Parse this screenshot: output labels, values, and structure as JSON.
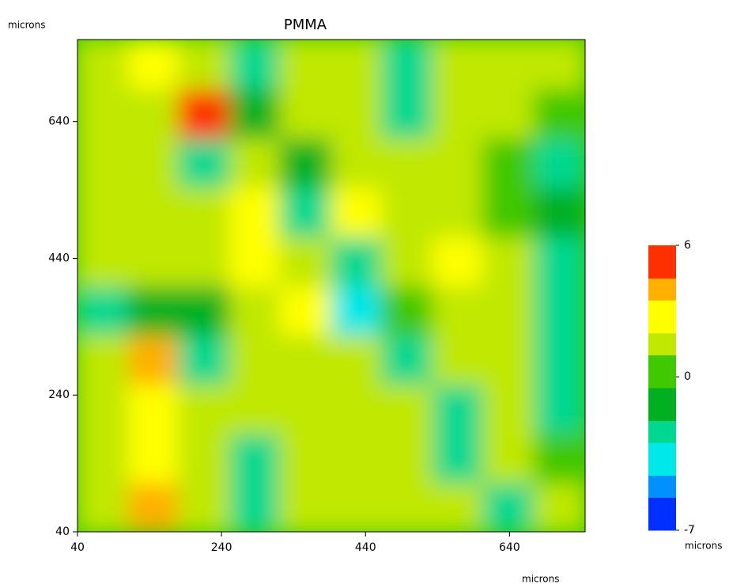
{
  "chart_data": {
    "type": "heatmap",
    "title": "PMMA",
    "xlabel": "microns",
    "ylabel": "microns",
    "colorbar_label": "microns",
    "x": [
      75,
      146,
      216,
      287,
      357,
      428,
      498,
      569,
      639,
      710
    ],
    "y": [
      76,
      148,
      220,
      292,
      364,
      436,
      508,
      580,
      652,
      724
    ],
    "z": [
      [
        1,
        4,
        2,
        -2,
        1,
        1,
        1,
        2,
        -3,
        1
      ],
      [
        2,
        3,
        1,
        -2,
        2,
        1,
        2,
        -3,
        2,
        0
      ],
      [
        1,
        3,
        1,
        2,
        1,
        1,
        1,
        -2,
        2,
        -3
      ],
      [
        1,
        4,
        -3,
        2,
        2,
        2,
        -2,
        2,
        1,
        -2
      ],
      [
        -2,
        -1,
        -1,
        1,
        3,
        -4,
        0,
        1,
        1,
        -3
      ],
      [
        1,
        2,
        1,
        3,
        2,
        -3,
        2,
        3,
        1,
        -3
      ],
      [
        2,
        1,
        1,
        3,
        -2,
        3,
        1,
        2,
        0,
        -1
      ],
      [
        1,
        2,
        -2,
        1,
        -1,
        2,
        1,
        2,
        0,
        -3
      ],
      [
        2,
        2,
        5,
        -1,
        1,
        2,
        -2,
        2,
        1,
        0
      ],
      [
        2,
        3,
        1,
        -2,
        1,
        2,
        -3,
        1,
        2,
        1
      ]
    ],
    "xlim": [
      40,
      745
    ],
    "ylim": [
      40,
      760
    ],
    "xticks": [
      40,
      240,
      440,
      640
    ],
    "yticks": [
      40,
      240,
      440,
      640
    ],
    "zlim": [
      -7,
      6
    ],
    "colorbar_ticks": [
      -7,
      0,
      6
    ],
    "colors": [
      "#0030ff",
      "#0090ff",
      "#00e8e8",
      "#00d890",
      "#00b020",
      "#40c800",
      "#c0e800",
      "#ffff00",
      "#ffb000",
      "#ff3000"
    ]
  }
}
